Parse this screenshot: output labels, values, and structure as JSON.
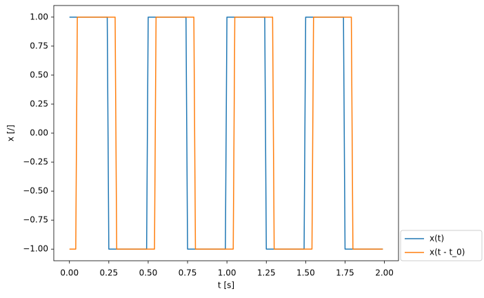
{
  "chart_data": {
    "type": "line",
    "x_label": "t [s]",
    "y_label": "x [/]",
    "xlim": [
      -0.0995,
      2.0895
    ],
    "ylim": [
      -1.1,
      1.1
    ],
    "xticks": [
      {
        "value": 0,
        "label": "0.00"
      },
      {
        "value": 0.25,
        "label": "0.25"
      },
      {
        "value": 0.5,
        "label": "0.50"
      },
      {
        "value": 0.75,
        "label": "0.75"
      },
      {
        "value": 1,
        "label": "1.00"
      },
      {
        "value": 1.25,
        "label": "1.25"
      },
      {
        "value": 1.5,
        "label": "1.50"
      },
      {
        "value": 1.75,
        "label": "1.75"
      },
      {
        "value": 2,
        "label": "2.00"
      }
    ],
    "yticks": [
      {
        "value": -1,
        "label": "−1.00"
      },
      {
        "value": -0.75,
        "label": "−0.75"
      },
      {
        "value": -0.5,
        "label": "−0.50"
      },
      {
        "value": -0.25,
        "label": "−0.25"
      },
      {
        "value": 0,
        "label": "0.00"
      },
      {
        "value": 0.25,
        "label": "0.25"
      },
      {
        "value": 0.5,
        "label": "0.50"
      },
      {
        "value": 0.75,
        "label": "0.75"
      },
      {
        "value": 1,
        "label": "1.00"
      }
    ],
    "grid": false,
    "legend": "outside-lower-right",
    "series": [
      {
        "name": "x(t)",
        "color": "#1f77b4",
        "x": [
          0,
          0.24,
          0.25,
          0.49,
          0.5,
          0.74,
          0.75,
          0.99,
          1.0,
          1.24,
          1.25,
          1.49,
          1.5,
          1.74,
          1.75,
          1.99
        ],
        "values": [
          1,
          1,
          -1,
          -1,
          1,
          1,
          -1,
          -1,
          1,
          1,
          -1,
          -1,
          1,
          1,
          -1,
          -1
        ]
      },
      {
        "name": "x(t - t_0)",
        "color": "#ff7f0e",
        "x": [
          0,
          0.04,
          0.05,
          0.29,
          0.3,
          0.54,
          0.55,
          0.79,
          0.8,
          1.04,
          1.05,
          1.29,
          1.3,
          1.54,
          1.55,
          1.79,
          1.8,
          1.99
        ],
        "values": [
          -1,
          -1,
          1,
          1,
          -1,
          -1,
          1,
          1,
          -1,
          -1,
          1,
          1,
          -1,
          -1,
          1,
          1,
          -1,
          -1
        ]
      }
    ]
  }
}
